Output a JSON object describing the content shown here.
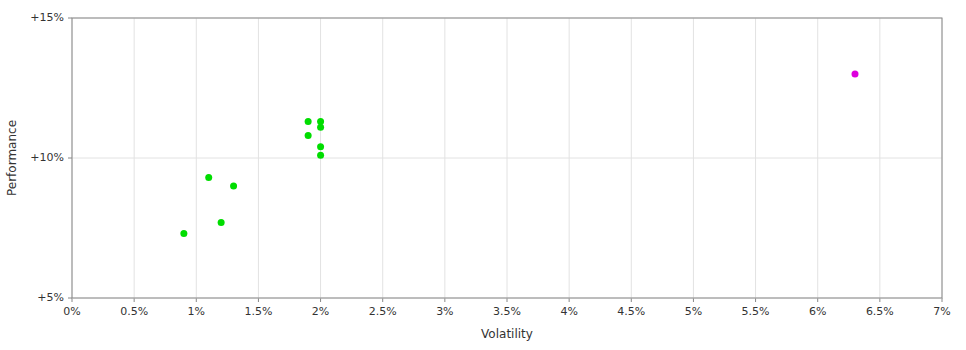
{
  "chart_data": {
    "type": "scatter",
    "xlabel": "Volatility",
    "ylabel": "Performance",
    "xlim": [
      0.0,
      0.07
    ],
    "ylim": [
      0.05,
      0.15
    ],
    "xticks": [
      {
        "value": 0.0,
        "label": "0%"
      },
      {
        "value": 0.005,
        "label": "0.5%"
      },
      {
        "value": 0.01,
        "label": "1%"
      },
      {
        "value": 0.015,
        "label": "1.5%"
      },
      {
        "value": 0.02,
        "label": "2%"
      },
      {
        "value": 0.025,
        "label": "2.5%"
      },
      {
        "value": 0.03,
        "label": "3%"
      },
      {
        "value": 0.035,
        "label": "3.5%"
      },
      {
        "value": 0.04,
        "label": "4%"
      },
      {
        "value": 0.045,
        "label": "4.5%"
      },
      {
        "value": 0.05,
        "label": "5%"
      },
      {
        "value": 0.055,
        "label": "5.5%"
      },
      {
        "value": 0.06,
        "label": "6%"
      },
      {
        "value": 0.065,
        "label": "6.5%"
      },
      {
        "value": 0.07,
        "label": "7%"
      }
    ],
    "yticks": [
      {
        "value": 0.05,
        "label": "+5%"
      },
      {
        "value": 0.1,
        "label": "+10%"
      },
      {
        "value": 0.15,
        "label": "+15%"
      }
    ],
    "grid": true,
    "series": [
      {
        "color": "#00dd00",
        "x": [
          0.009,
          0.012,
          0.011,
          0.013,
          0.019,
          0.02,
          0.019,
          0.02,
          0.02,
          0.02
        ],
        "values": [
          0.073,
          0.077,
          0.093,
          0.09,
          0.113,
          0.113,
          0.108,
          0.111,
          0.104,
          0.101
        ]
      },
      {
        "color": "#dd00dd",
        "x": [
          0.063
        ],
        "values": [
          0.13
        ]
      }
    ]
  }
}
